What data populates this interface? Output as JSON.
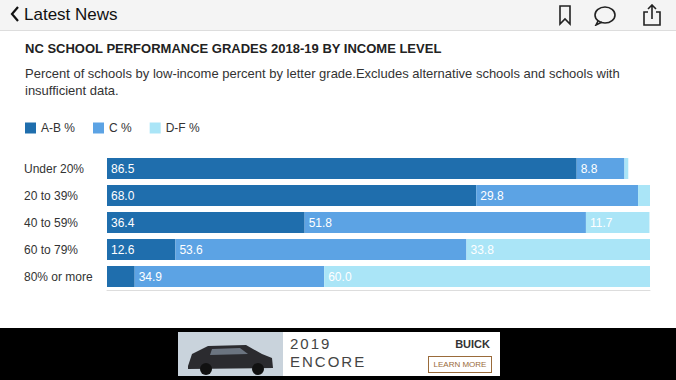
{
  "chart_data": {
    "type": "bar",
    "title": "NC SCHOOL PERFORMANCE GRADES 2018-19 BY INCOME LEVEL",
    "subtitle": "Percent of schools by low-income percent by letter grade.Excludes alternative schools and schools with insufficient data.",
    "orientation": "horizontal",
    "stacked": true,
    "data_labels": true,
    "tick_labels": "y",
    "legend": "top-left",
    "categories": [
      "Under 20%",
      "20 to 39%",
      "40 to 59%",
      "60 to 79%",
      "80% or more"
    ],
    "xlim": [
      0,
      100
    ],
    "series": [
      {
        "name": "A-B %",
        "color": "#1f6ead",
        "values": [
          86.5,
          68.0,
          36.4,
          12.6,
          5.1
        ],
        "value_labels": [
          "86.5",
          "68.0",
          "36.4",
          "12.6",
          null
        ]
      },
      {
        "name": "C %",
        "color": "#5ca3e4",
        "values": [
          8.8,
          29.8,
          51.8,
          53.6,
          34.9
        ],
        "value_labels": [
          "8.8",
          "29.8",
          "51.8",
          "53.6",
          "34.9"
        ]
      },
      {
        "name": "D-F %",
        "color": "#aae5f7",
        "values": [
          0.7,
          2.2,
          11.7,
          33.8,
          60.0
        ],
        "value_labels": [
          null,
          null,
          "11.7",
          "33.8",
          "60.0"
        ]
      }
    ]
  },
  "app_bar": {
    "back_label": "Latest News"
  },
  "ad": {
    "lines": [
      "2019",
      "ENCORE"
    ],
    "brand": "BUICK",
    "button": "LEARN MORE"
  }
}
